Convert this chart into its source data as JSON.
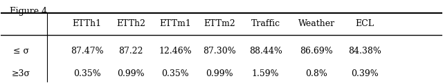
{
  "title": "Figure 4",
  "col_headers": [
    "",
    "ETTh1",
    "ETTh2",
    "ETTm1",
    "ETTm2",
    "Traffic",
    "Weather",
    "ECL"
  ],
  "row_labels": [
    "≤ σ",
    "≥3σ"
  ],
  "row1_values": [
    "87.47%",
    "87.22",
    "12.46%",
    "87.30%",
    "88.44%",
    "86.69%",
    "84.38%"
  ],
  "row2_values": [
    "0.35%",
    "0.99%",
    "0.35%",
    "0.99%",
    "1.59%",
    "0.8%",
    "0.39%"
  ],
  "bg_color": "#ffffff",
  "text_color": "#000000",
  "fontsize": 9,
  "title_fontsize": 9
}
